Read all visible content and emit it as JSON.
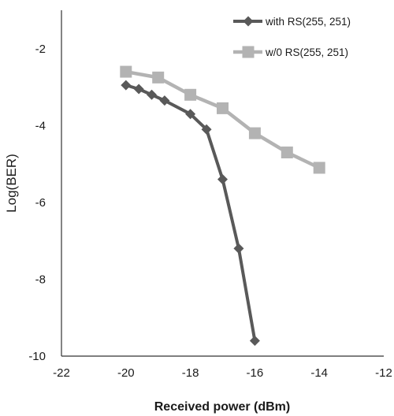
{
  "chart_data": {
    "type": "line",
    "xlabel": "Received power (dBm)",
    "ylabel": "Log(BER)",
    "xlim": [
      -22,
      -12
    ],
    "ylim": [
      -10,
      -1
    ],
    "xticks": [
      -22,
      -20,
      -18,
      -16,
      -14,
      -12
    ],
    "yticks": [
      -2,
      -4,
      -6,
      -8,
      -10
    ],
    "legend_position": "top-right",
    "grid": false,
    "series": [
      {
        "name": "with RS(255, 251)",
        "marker": "diamond",
        "color": "#595959",
        "x": [
          -20,
          -19.6,
          -19.2,
          -18.8,
          -18,
          -17.5,
          -17,
          -16.5,
          -16
        ],
        "y": [
          -2.95,
          -3.05,
          -3.2,
          -3.35,
          -3.7,
          -4.1,
          -5.4,
          -7.2,
          -9.6
        ]
      },
      {
        "name": "w/0 RS(255, 251)",
        "marker": "square",
        "color": "#b3b3b3",
        "x": [
          -20,
          -19,
          -18,
          -17,
          -16,
          -15,
          -14
        ],
        "y": [
          -2.6,
          -2.75,
          -3.2,
          -3.55,
          -4.2,
          -4.7,
          -5.1
        ]
      }
    ]
  }
}
